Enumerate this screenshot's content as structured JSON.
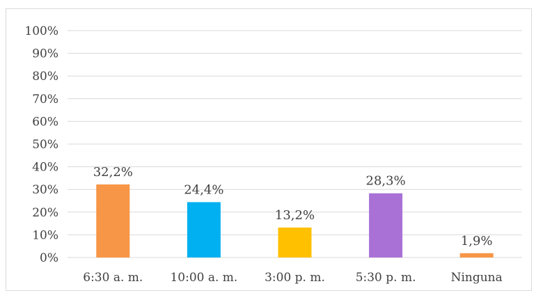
{
  "chart_data": {
    "type": "bar",
    "categories": [
      "6:30 a. m.",
      "10:00 a. m.",
      "3:00 p. m.",
      "5:30 p. m.",
      "Ninguna"
    ],
    "series": [
      {
        "values": [
          32.2,
          24.4,
          13.2,
          28.3,
          1.9
        ],
        "data_labels": [
          "32,2%",
          "24,4%",
          "13,2%",
          "28,3%",
          "1,9%"
        ],
        "colors": [
          "#f79646",
          "#00b0f0",
          "#ffc000",
          "#a971d6",
          "#f79646"
        ]
      }
    ],
    "y_ticks": [
      "0%",
      "10%",
      "20%",
      "30%",
      "40%",
      "50%",
      "60%",
      "70%",
      "80%",
      "90%",
      "100%"
    ],
    "ylim": [
      0,
      100
    ],
    "grid": true,
    "legend": "none",
    "gridline_color": "#d9d9d9"
  }
}
